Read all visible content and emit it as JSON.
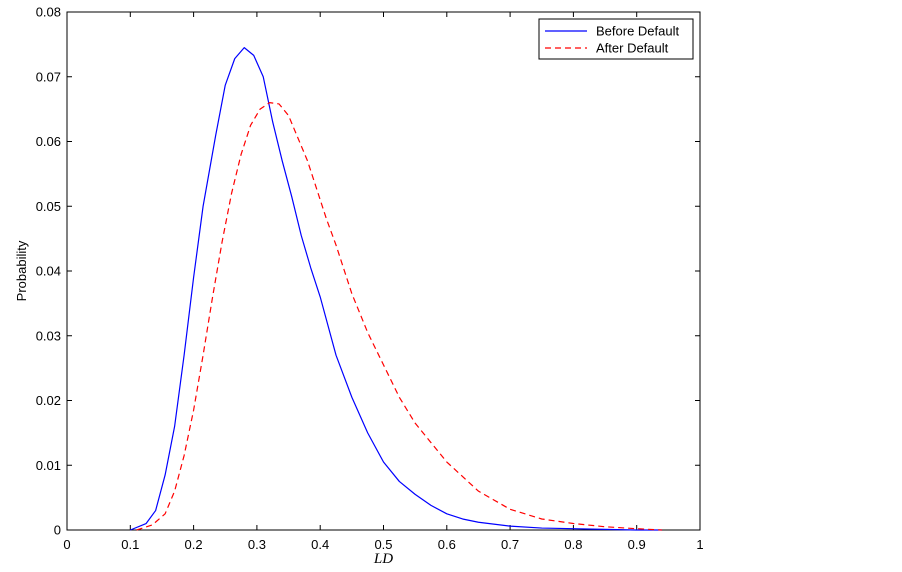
{
  "chart_data": {
    "type": "line",
    "title": "",
    "xlabel": "LD",
    "ylabel": "Probability",
    "xlim": [
      0,
      1
    ],
    "ylim": [
      0,
      0.08
    ],
    "xticks": [
      0,
      0.1,
      0.2,
      0.3,
      0.4,
      0.5,
      0.6,
      0.7,
      0.8,
      0.9,
      1
    ],
    "xtick_labels": [
      "0",
      "0.1",
      "0.2",
      "0.3",
      "0.4",
      "0.5",
      "0.6",
      "0.7",
      "0.8",
      "0.9",
      "1"
    ],
    "yticks": [
      0,
      0.01,
      0.02,
      0.03,
      0.04,
      0.05,
      0.06,
      0.07,
      0.08
    ],
    "ytick_labels": [
      "0",
      "0.01",
      "0.02",
      "0.03",
      "0.04",
      "0.05",
      "0.06",
      "0.07",
      "0.08"
    ],
    "grid": false,
    "legend_position": "top-right",
    "series": [
      {
        "name": "Before Default",
        "color": "#0000ff",
        "line_style": "solid",
        "x": [
          0.1,
          0.125,
          0.14,
          0.155,
          0.17,
          0.185,
          0.2,
          0.215,
          0.235,
          0.25,
          0.265,
          0.28,
          0.295,
          0.31,
          0.325,
          0.34,
          0.355,
          0.37,
          0.385,
          0.4,
          0.425,
          0.45,
          0.475,
          0.5,
          0.525,
          0.55,
          0.575,
          0.6,
          0.625,
          0.65,
          0.7,
          0.75,
          0.8,
          0.85,
          0.9,
          0.94
        ],
        "y": [
          0.0,
          0.001,
          0.003,
          0.0085,
          0.016,
          0.027,
          0.039,
          0.05,
          0.061,
          0.0687,
          0.0728,
          0.0745,
          0.0733,
          0.07,
          0.063,
          0.057,
          0.0515,
          0.0455,
          0.0405,
          0.036,
          0.027,
          0.0205,
          0.015,
          0.0105,
          0.0075,
          0.0055,
          0.0038,
          0.0025,
          0.0017,
          0.0012,
          0.0006,
          0.0003,
          0.0002,
          0.0001,
          0.0,
          0.0
        ]
      },
      {
        "name": "After Default",
        "color": "#ff0000",
        "line_style": "dashed",
        "x": [
          0.11,
          0.135,
          0.155,
          0.17,
          0.185,
          0.2,
          0.215,
          0.23,
          0.245,
          0.26,
          0.275,
          0.29,
          0.305,
          0.32,
          0.335,
          0.35,
          0.365,
          0.38,
          0.395,
          0.41,
          0.425,
          0.45,
          0.475,
          0.5,
          0.525,
          0.55,
          0.575,
          0.6,
          0.65,
          0.7,
          0.75,
          0.8,
          0.85,
          0.9,
          0.94
        ],
        "y": [
          0.0,
          0.0008,
          0.0025,
          0.006,
          0.0115,
          0.0185,
          0.027,
          0.036,
          0.0445,
          0.052,
          0.058,
          0.0625,
          0.065,
          0.066,
          0.0658,
          0.064,
          0.0605,
          0.057,
          0.0525,
          0.048,
          0.044,
          0.0365,
          0.0305,
          0.0255,
          0.0205,
          0.0165,
          0.0135,
          0.0105,
          0.006,
          0.0032,
          0.0017,
          0.001,
          0.0005,
          0.0002,
          0.0
        ]
      }
    ]
  }
}
